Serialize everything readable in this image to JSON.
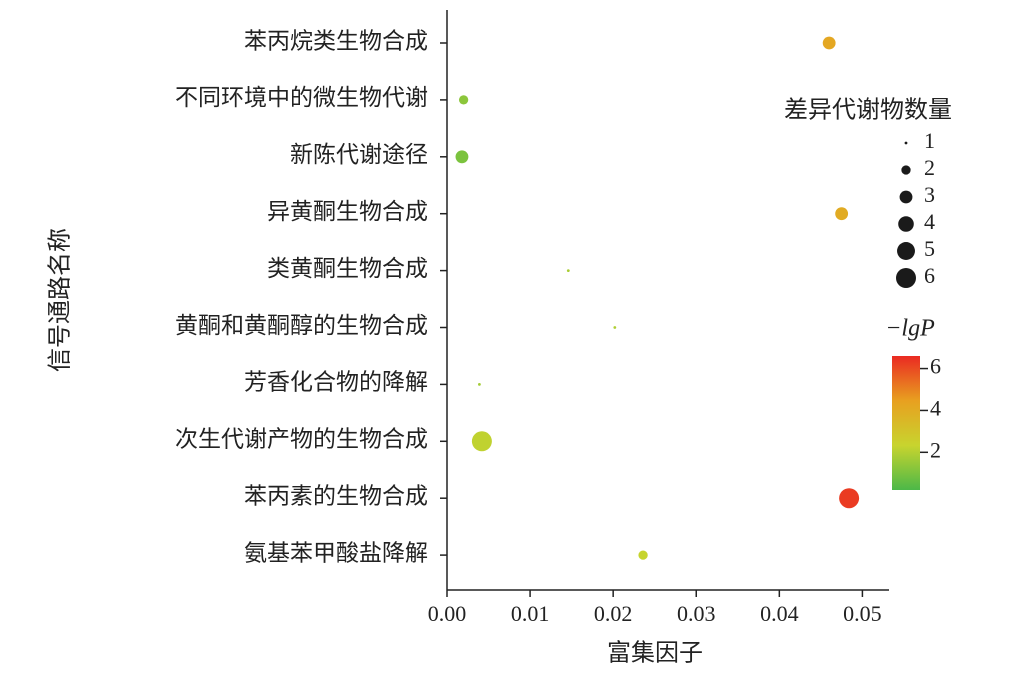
{
  "chart_data": {
    "type": "scatter",
    "x_label": "富集因子",
    "y_label": "信号通路名称",
    "categories": [
      "苯丙烷类生物合成",
      "不同环境中的微生物代谢",
      "新陈代谢途径",
      "异黄酮生物合成",
      "类黄酮生物合成",
      "黄酮和黄酮醇的生物合成",
      "芳香化合物的降解",
      "次生代谢产物的生物合成",
      "苯丙素的生物合成",
      "氨基苯甲酸盐降解"
    ],
    "values": [
      0.046,
      0.002,
      0.0018,
      0.0475,
      0.0146,
      0.0202,
      0.0039,
      0.0042,
      0.0484,
      0.0236
    ],
    "sizes": [
      3,
      2,
      3,
      3,
      1,
      1,
      1,
      6,
      6,
      2
    ],
    "neg_log_p": [
      4.2,
      1.3,
      1.0,
      4.0,
      1.8,
      1.9,
      1.7,
      2.2,
      6.3,
      2.3
    ],
    "xlim": [
      0,
      0.0532
    ],
    "xticks": [
      {
        "value": 0,
        "label": "0.00"
      },
      0.01,
      0.02,
      0.03,
      0.04,
      0.05
    ],
    "size_legend_title": "差异代谢物数量",
    "size_legend": [
      1,
      2,
      3,
      4,
      5,
      6
    ],
    "colorbar_label": "−lgP",
    "clim": [
      0.2,
      6.6
    ],
    "cticks": [
      2,
      4,
      6
    ],
    "colors": [
      "#4cb848",
      "#c8d42e",
      "#e8a020",
      "#ea2a22"
    ]
  }
}
